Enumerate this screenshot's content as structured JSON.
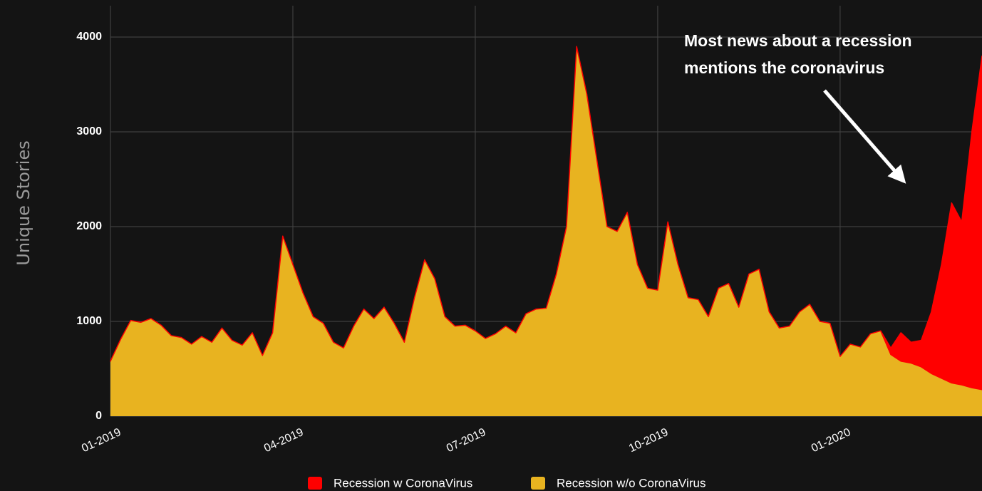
{
  "chart_data": {
    "type": "stacked_area",
    "ylabel": "Unique Stories",
    "annotation": [
      "Most news about a recession",
      "mentions the coronavirus"
    ],
    "x": [
      "01-2019",
      "01-2019",
      "01-2019",
      "01-2019",
      "01-2019",
      "01-2019",
      "02-2019",
      "02-2019",
      "02-2019",
      "02-2019",
      "02-2019",
      "02-2019",
      "03-2019",
      "03-2019",
      "03-2019",
      "03-2019",
      "03-2019",
      "03-2019",
      "04-2019",
      "04-2019",
      "04-2019",
      "04-2019",
      "04-2019",
      "04-2019",
      "05-2019",
      "05-2019",
      "05-2019",
      "05-2019",
      "05-2019",
      "05-2019",
      "06-2019",
      "06-2019",
      "06-2019",
      "06-2019",
      "06-2019",
      "06-2019",
      "07-2019",
      "07-2019",
      "07-2019",
      "07-2019",
      "07-2019",
      "07-2019",
      "08-2019",
      "08-2019",
      "08-2019",
      "08-2019",
      "08-2019",
      "08-2019",
      "09-2019",
      "09-2019",
      "09-2019",
      "09-2019",
      "09-2019",
      "09-2019",
      "10-2019",
      "10-2019",
      "10-2019",
      "10-2019",
      "10-2019",
      "10-2019",
      "11-2019",
      "11-2019",
      "11-2019",
      "11-2019",
      "11-2019",
      "11-2019",
      "12-2019",
      "12-2019",
      "12-2019",
      "12-2019",
      "12-2019",
      "12-2019",
      "01-2020",
      "01-2020",
      "01-2020",
      "01-2020",
      "01-2020",
      "01-2020",
      "02-2020",
      "02-2020",
      "02-2020",
      "02-2020",
      "02-2020",
      "02-2020",
      "03-2020",
      "03-2020",
      "03-2020"
    ],
    "series": [
      {
        "name": "Recession w/o CoronaVirus",
        "color": "#e8b320",
        "values": [
          580,
          810,
          1010,
          990,
          1030,
          960,
          850,
          830,
          760,
          840,
          780,
          930,
          800,
          750,
          880,
          640,
          880,
          1900,
          1600,
          1300,
          1050,
          980,
          780,
          720,
          950,
          1130,
          1030,
          1150,
          980,
          780,
          1250,
          1650,
          1450,
          1050,
          950,
          960,
          900,
          820,
          870,
          950,
          880,
          1080,
          1130,
          1140,
          1500,
          2000,
          3900,
          3400,
          2700,
          2000,
          1950,
          2150,
          1600,
          1350,
          1330,
          2050,
          1600,
          1250,
          1230,
          1050,
          1350,
          1400,
          1150,
          1500,
          1550,
          1100,
          930,
          950,
          1100,
          1180,
          1000,
          980,
          630,
          760,
          730,
          870,
          900,
          650,
          580,
          560,
          520,
          450,
          400,
          350,
          330,
          300,
          280
        ]
      },
      {
        "name": "Recession w CoronaVirus",
        "color": "#ff0000",
        "values": [
          0,
          0,
          0,
          0,
          0,
          0,
          0,
          0,
          0,
          0,
          0,
          0,
          0,
          0,
          0,
          0,
          0,
          0,
          0,
          0,
          0,
          0,
          0,
          0,
          0,
          0,
          0,
          0,
          0,
          0,
          0,
          0,
          0,
          0,
          0,
          0,
          0,
          0,
          0,
          0,
          0,
          0,
          0,
          0,
          0,
          0,
          0,
          0,
          0,
          0,
          0,
          0,
          0,
          0,
          0,
          0,
          0,
          0,
          0,
          0,
          0,
          0,
          0,
          0,
          0,
          0,
          0,
          0,
          0,
          0,
          0,
          0,
          0,
          0,
          0,
          0,
          0,
          70,
          300,
          220,
          280,
          650,
          1200,
          1900,
          1720,
          2700,
          3520
        ]
      }
    ],
    "xticks": [
      "01-2019",
      "04-2019",
      "07-2019",
      "10-2019",
      "01-2020"
    ],
    "ylim": [
      0,
      4000
    ],
    "yticks": [
      0,
      1000,
      2000,
      3000,
      4000
    ],
    "grid": true
  }
}
